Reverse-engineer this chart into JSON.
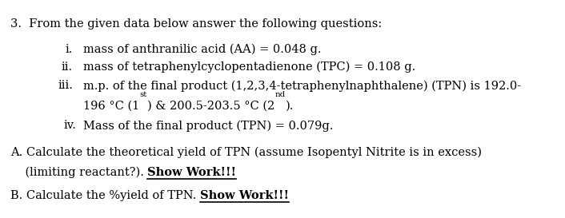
{
  "background_color": "#ffffff",
  "fig_width": 7.06,
  "fig_height": 2.73,
  "dpi": 100,
  "header": "3.  From the given data below answer the following questions:",
  "item_i_label": "i.",
  "item_i_text": "mass of anthranilic acid (AA) = 0.048 g.",
  "item_ii_label": "ii.",
  "item_ii_text": "mass of tetraphenylcyclopentadienone (TPC) = 0.108 g.",
  "item_iii_label": "iii.",
  "item_iii_line1": "m.p. of the final product (1,2,3,4-tetraphenylnaphthalene) (TPN) is 192.0-",
  "item_iii_line2_a": "196 °C (1",
  "item_iii_sup1": "st",
  "item_iii_line2_b": ") & 200.5-203.5 °C (2",
  "item_iii_sup2": "nd",
  "item_iii_line2_c": ").",
  "item_iv_label": "iv.",
  "item_iv_text": "Mass of the final product (TPN) = 0.079g.",
  "question_A_line1": "A. Calculate the theoretical yield of TPN (assume Isopentyl Nitrite is in excess)",
  "question_A_line2_pre": "    (limiting reactant?). ",
  "question_A_line2_bold": "Show Work!!!",
  "question_B_pre": "B. Calculate the %yield of TPN. ",
  "question_B_bold": "Show Work!!!",
  "font_family": "DejaVu Serif",
  "font_size": 10.5,
  "text_color": "#000000"
}
